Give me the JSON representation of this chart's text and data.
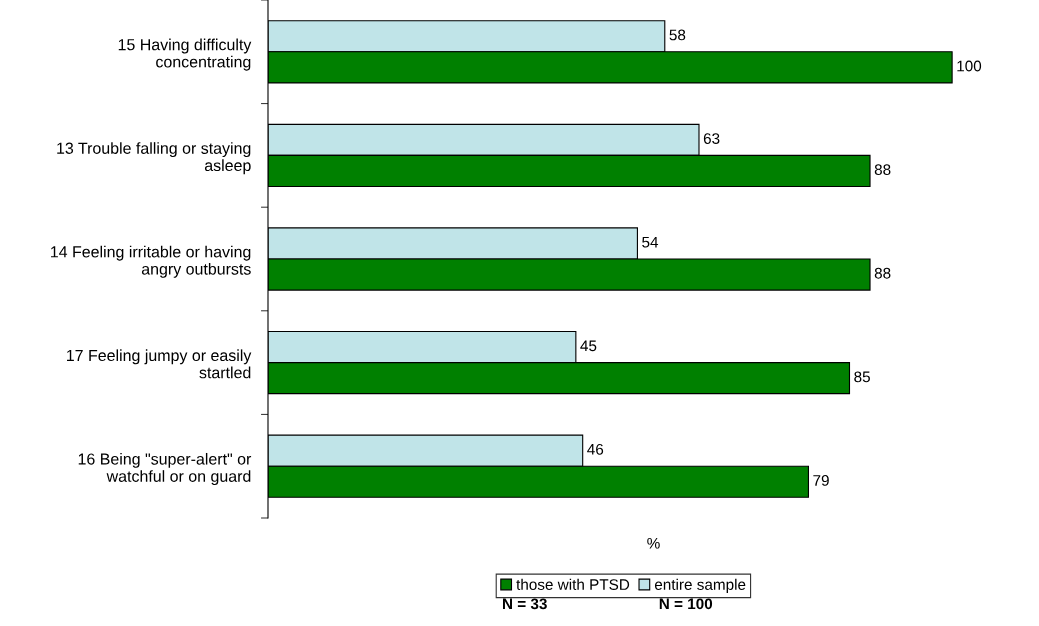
{
  "chart_data": {
    "type": "bar",
    "orientation": "horizontal",
    "xlabel": "%",
    "categories": [
      "15 Having difficulty\nconcentrating",
      "13 Trouble falling or staying\nasleep",
      "14 Feeling irritable or having\nangry outbursts",
      "17 Feeling jumpy or easily\nstartled",
      "16 Being \"super-alert\" or\nwatchful or on guard"
    ],
    "series": [
      {
        "name": "entire sample",
        "color": "#c0e4e8",
        "values": [
          58,
          63,
          54,
          45,
          46
        ]
      },
      {
        "name": "those with PTSD",
        "color": "#008000",
        "values": [
          100,
          88,
          88,
          85,
          79
        ]
      }
    ],
    "data_labels": true,
    "legend": "bottom",
    "tick_labels": "y",
    "annotations": [
      "N = 33",
      "N = 100"
    ]
  }
}
